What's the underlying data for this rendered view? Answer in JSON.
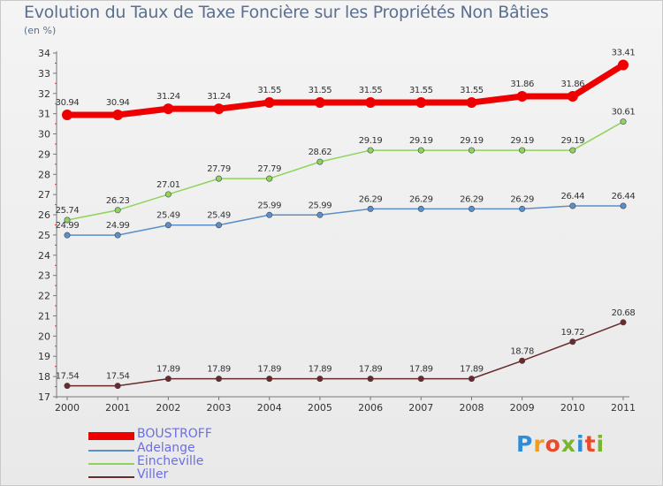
{
  "title": "Evolution du Taux de Taxe Foncière sur les Propriétés Non Bâties",
  "unit_label": "(en %)",
  "logo_text": "Proxiti",
  "logo_colors": [
    "#2f8dd8",
    "#f39b1e",
    "#e84b2b",
    "#79b52f",
    "#2f8dd8",
    "#e84b2b",
    "#79b52f"
  ],
  "chart_data": {
    "type": "line",
    "title": "Evolution du Taux de Taxe Foncière sur les Propriétés Non Bâties",
    "ylabel": "(en %)",
    "x": [
      "2000",
      "2001",
      "2002",
      "2003",
      "2004",
      "2005",
      "2006",
      "2007",
      "2008",
      "2009",
      "2010",
      "2011"
    ],
    "ylim": [
      17,
      34
    ],
    "yticks": [
      "17",
      "18",
      "19",
      "20",
      "21",
      "22",
      "23",
      "24",
      "25",
      "26",
      "27",
      "28",
      "29",
      "30",
      "31",
      "32",
      "33",
      "34"
    ],
    "grid": false,
    "legend": "bottom-left",
    "series": [
      {
        "name": "BOUSTROFF",
        "color": "#ee0000",
        "values": [
          30.94,
          30.94,
          31.24,
          31.24,
          31.55,
          31.55,
          31.55,
          31.55,
          31.55,
          31.86,
          31.86,
          33.41
        ],
        "labels": [
          "30.94",
          "30.94",
          "31.24",
          "31.24",
          "31.55",
          "31.55",
          "31.55",
          "31.55",
          "31.55",
          "31.86",
          "31.86",
          "33.41"
        ]
      },
      {
        "name": "Adelange",
        "color": "#5b8fc6",
        "values": [
          24.99,
          24.99,
          25.49,
          25.49,
          25.99,
          25.99,
          26.29,
          26.29,
          26.29,
          26.29,
          26.44,
          26.44
        ],
        "labels": [
          "24.99",
          "24.99",
          "25.49",
          "25.49",
          "25.99",
          "25.99",
          "26.29",
          "26.29",
          "26.29",
          "26.29",
          "26.44",
          "26.44"
        ]
      },
      {
        "name": "Eincheville",
        "color": "#8ed45a",
        "values": [
          25.74,
          26.23,
          27.01,
          27.79,
          27.79,
          28.62,
          29.19,
          29.19,
          29.19,
          29.19,
          29.19,
          30.61
        ],
        "labels": [
          "25.74",
          "26.23",
          "27.01",
          "27.79",
          "27.79",
          "28.62",
          "29.19",
          "29.19",
          "29.19",
          "29.19",
          "29.19",
          "30.61"
        ]
      },
      {
        "name": "Viller",
        "color": "#6b2a2a",
        "values": [
          17.54,
          17.54,
          17.89,
          17.89,
          17.89,
          17.89,
          17.89,
          17.89,
          17.89,
          18.78,
          19.72,
          20.68
        ],
        "labels": [
          "17.54",
          "17.54",
          "17.89",
          "17.89",
          "17.89",
          "17.89",
          "17.89",
          "17.89",
          "17.89",
          "18.78",
          "19.72",
          "20.68"
        ]
      }
    ]
  }
}
